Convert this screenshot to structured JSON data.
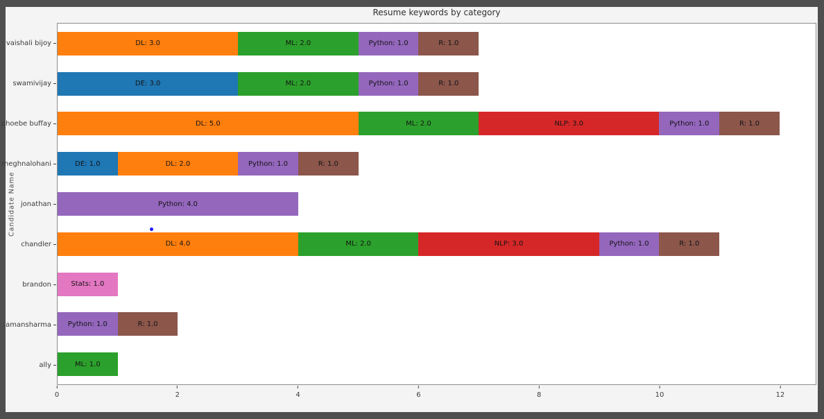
{
  "colors": {
    "frame": "#4f4f4f",
    "figure_bg": "#f4f4f5",
    "plot_bg": "#ffffff",
    "plot_border": "#8c8c8c",
    "text": "#2e2e2e"
  },
  "chart_data": {
    "type": "bar",
    "orientation": "horizontal",
    "stacked": true,
    "title": "Resume keywords by category",
    "xlabel": "",
    "ylabel": "Candidate Name",
    "xlim": [
      0,
      12.6
    ],
    "xticks": [
      0,
      2,
      4,
      6,
      8,
      10,
      12
    ],
    "grid": false,
    "legend": "none",
    "palette": {
      "DE": "#1f77b4",
      "DL": "#ff7f0e",
      "ML": "#2ca02c",
      "NLP": "#d62728",
      "Python": "#9467bd",
      "R": "#8c564b",
      "Stats": "#e377c2"
    },
    "rows": [
      {
        "name": "vaishali bijoy",
        "total": 7.0,
        "segments": [
          {
            "category": "DL",
            "value": 3.0,
            "label": "DL: 3.0"
          },
          {
            "category": "ML",
            "value": 2.0,
            "label": "ML: 2.0"
          },
          {
            "category": "Python",
            "value": 1.0,
            "label": "Python: 1.0"
          },
          {
            "category": "R",
            "value": 1.0,
            "label": "R: 1.0"
          }
        ]
      },
      {
        "name": "swamivijay",
        "total": 7.0,
        "segments": [
          {
            "category": "DE",
            "value": 3.0,
            "label": "DE: 3.0"
          },
          {
            "category": "ML",
            "value": 2.0,
            "label": "ML: 2.0"
          },
          {
            "category": "Python",
            "value": 1.0,
            "label": "Python: 1.0"
          },
          {
            "category": "R",
            "value": 1.0,
            "label": "R: 1.0"
          }
        ]
      },
      {
        "name": "phoebe buffay",
        "total": 12.0,
        "segments": [
          {
            "category": "DL",
            "value": 5.0,
            "label": "DL: 5.0"
          },
          {
            "category": "ML",
            "value": 2.0,
            "label": "ML: 2.0"
          },
          {
            "category": "NLP",
            "value": 3.0,
            "label": "NLP: 3.0"
          },
          {
            "category": "Python",
            "value": 1.0,
            "label": "Python: 1.0"
          },
          {
            "category": "R",
            "value": 1.0,
            "label": "R: 1.0"
          }
        ]
      },
      {
        "name": "meghnalohani",
        "total": 5.0,
        "segments": [
          {
            "category": "DE",
            "value": 1.0,
            "label": "DE: 1.0"
          },
          {
            "category": "DL",
            "value": 2.0,
            "label": "DL: 2.0"
          },
          {
            "category": "Python",
            "value": 1.0,
            "label": "Python: 1.0"
          },
          {
            "category": "R",
            "value": 1.0,
            "label": "R: 1.0"
          }
        ]
      },
      {
        "name": "jonathan",
        "total": 4.0,
        "segments": [
          {
            "category": "Python",
            "value": 4.0,
            "label": "Python: 4.0"
          }
        ]
      },
      {
        "name": "chandler",
        "total": 11.0,
        "segments": [
          {
            "category": "DL",
            "value": 4.0,
            "label": "DL: 4.0"
          },
          {
            "category": "ML",
            "value": 2.0,
            "label": "ML: 2.0"
          },
          {
            "category": "NLP",
            "value": 3.0,
            "label": "NLP: 3.0"
          },
          {
            "category": "Python",
            "value": 1.0,
            "label": "Python: 1.0"
          },
          {
            "category": "R",
            "value": 1.0,
            "label": "R: 1.0"
          }
        ]
      },
      {
        "name": "brandon",
        "total": 1.0,
        "segments": [
          {
            "category": "Stats",
            "value": 1.0,
            "label": "Stats: 1.0"
          }
        ]
      },
      {
        "name": "amansharma",
        "total": 2.0,
        "segments": [
          {
            "category": "Python",
            "value": 1.0,
            "label": "Python: 1.0"
          },
          {
            "category": "R",
            "value": 1.0,
            "label": "R: 1.0"
          }
        ]
      },
      {
        "name": "ally",
        "total": 1.0,
        "segments": [
          {
            "category": "ML",
            "value": 1.0,
            "label": "ML: 1.0"
          }
        ]
      }
    ],
    "annotations": [
      {
        "type": "point",
        "x": 1.56,
        "near_row": "chandler",
        "color": "#1a1aff"
      }
    ]
  }
}
